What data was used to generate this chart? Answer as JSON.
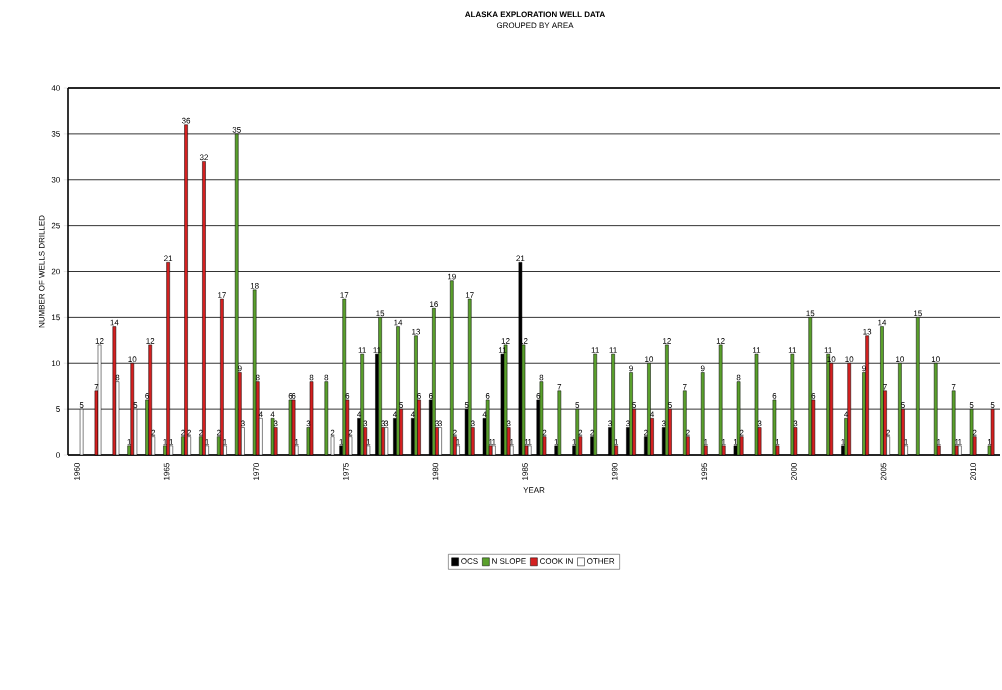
{
  "chart_data": {
    "type": "bar",
    "title": "ALASKA EXPLORATION WELL DATA",
    "subtitle": "GROUPED BY AREA",
    "xlabel": "YEAR",
    "ylabel": "NUMBER OF WELLS DRILLED",
    "categories": [
      "1960",
      null,
      null,
      null,
      null,
      "1965",
      null,
      null,
      null,
      null,
      "1970",
      null,
      null,
      null,
      null,
      "1975",
      null,
      null,
      null,
      null,
      "1980",
      null,
      null,
      null,
      null,
      "1985",
      null,
      null,
      null,
      null,
      "1990",
      null,
      null,
      null,
      null,
      "1995",
      null,
      null,
      null,
      null,
      "2000",
      null,
      null,
      null,
      null,
      "2005",
      null,
      null,
      null,
      null,
      "2010",
      null
    ],
    "series": [
      {
        "name": "OCS",
        "color": "#000000",
        "values": [
          0,
          0,
          0,
          0,
          0,
          0,
          0,
          0,
          0,
          0,
          0,
          0,
          0,
          0,
          0,
          1,
          4,
          11,
          4,
          4,
          6,
          0,
          5,
          4,
          11,
          21,
          6,
          1,
          1,
          2,
          3,
          3,
          2,
          3,
          0,
          0,
          0,
          1,
          0,
          0,
          0,
          0,
          0,
          1,
          0,
          0,
          0,
          0,
          0,
          0,
          0,
          0
        ],
        "value_labels": [
          null,
          null,
          null,
          null,
          null,
          null,
          null,
          null,
          null,
          null,
          null,
          null,
          null,
          null,
          null,
          "1",
          "4",
          "11",
          "4",
          "4",
          "6",
          null,
          "5",
          "4",
          "11",
          "21",
          "6",
          "1",
          "1",
          "2",
          "3",
          "3",
          "2",
          "3",
          null,
          null,
          null,
          "1",
          null,
          null,
          null,
          null,
          null,
          "1",
          null,
          null,
          null,
          null,
          null,
          null,
          null,
          null
        ]
      },
      {
        "name": "N SLOPE",
        "color": "#5aa02c",
        "values": [
          0,
          0,
          0,
          1,
          6,
          1,
          2,
          2,
          2,
          35,
          18,
          4,
          6,
          3,
          8,
          17,
          11,
          15,
          14,
          13,
          16,
          19,
          17,
          6,
          12,
          12,
          8,
          7,
          5,
          11,
          11,
          9,
          10,
          12,
          7,
          9,
          12,
          8,
          11,
          6,
          11,
          15,
          11,
          4,
          9,
          14,
          10,
          15,
          10,
          7,
          5,
          1
        ],
        "value_labels": [
          null,
          null,
          null,
          "1",
          "6",
          "1",
          "2",
          "2",
          "2",
          "35",
          "18",
          "4",
          "6",
          "3",
          "8",
          "17",
          "11",
          "15",
          "14",
          "13",
          "16",
          "19",
          "17",
          "6",
          "12",
          "12",
          "8",
          "7",
          "5",
          "11",
          "11",
          "9",
          "10",
          "12",
          "7",
          "9",
          "12",
          "8",
          "11",
          "6",
          "11",
          "15",
          "11",
          "4",
          "9",
          "14",
          "10",
          "15",
          "10",
          "7",
          "5",
          "1"
        ]
      },
      {
        "name": "COOK IN",
        "color": "#d42020",
        "values": [
          0,
          7,
          14,
          10,
          12,
          21,
          36,
          32,
          17,
          9,
          8,
          3,
          6,
          8,
          0,
          6,
          3,
          3,
          5,
          6,
          3,
          2,
          3,
          1,
          3,
          1,
          2,
          0,
          2,
          0,
          1,
          5,
          4,
          5,
          2,
          1,
          1,
          2,
          3,
          1,
          3,
          6,
          10,
          10,
          13,
          7,
          5,
          0,
          1,
          1,
          2,
          5
        ],
        "value_labels": [
          null,
          "7",
          "14",
          "10",
          "12",
          "21",
          "36",
          "32",
          "17",
          "9",
          "8",
          "3",
          "6",
          "8",
          null,
          "6",
          "3",
          "3",
          "5",
          "6",
          "3",
          "2",
          "3",
          "1",
          "3",
          "1",
          "2",
          null,
          "2",
          null,
          "1",
          "5",
          "4",
          "5",
          "2",
          "1",
          "1",
          "2",
          "3",
          "1",
          "3",
          "6",
          "10",
          "10",
          "13",
          "7",
          "5",
          null,
          "1",
          "1",
          "2",
          "5"
        ]
      },
      {
        "name": "OTHER",
        "color": "#ffffff",
        "values": [
          5,
          12,
          8,
          5,
          2,
          1,
          2,
          1,
          1,
          3,
          4,
          0,
          1,
          0,
          2,
          2,
          1,
          3,
          0,
          0,
          3,
          1,
          0,
          1,
          1,
          1,
          0,
          0,
          0,
          0,
          0,
          0,
          0,
          0,
          0,
          0,
          0,
          0,
          0,
          0,
          0,
          0,
          0,
          0,
          0,
          2,
          1,
          0,
          0,
          1,
          0,
          0
        ],
        "value_labels": [
          "5",
          "12",
          "8",
          "5",
          "2",
          "1",
          "2",
          "1",
          "1",
          "3",
          "4",
          null,
          "1",
          null,
          "2",
          "2",
          "1",
          "3",
          null,
          null,
          "3",
          "1",
          null,
          "1",
          "1",
          "1",
          null,
          null,
          null,
          null,
          null,
          null,
          null,
          null,
          null,
          null,
          null,
          null,
          null,
          null,
          null,
          null,
          null,
          null,
          null,
          "2",
          "1",
          null,
          null,
          "1",
          null,
          null
        ]
      }
    ],
    "ylim": [
      0,
      40
    ],
    "yticks": [
      0,
      5,
      10,
      15,
      20,
      25,
      30,
      35,
      40
    ],
    "grid": "y",
    "legend": "bottom"
  }
}
